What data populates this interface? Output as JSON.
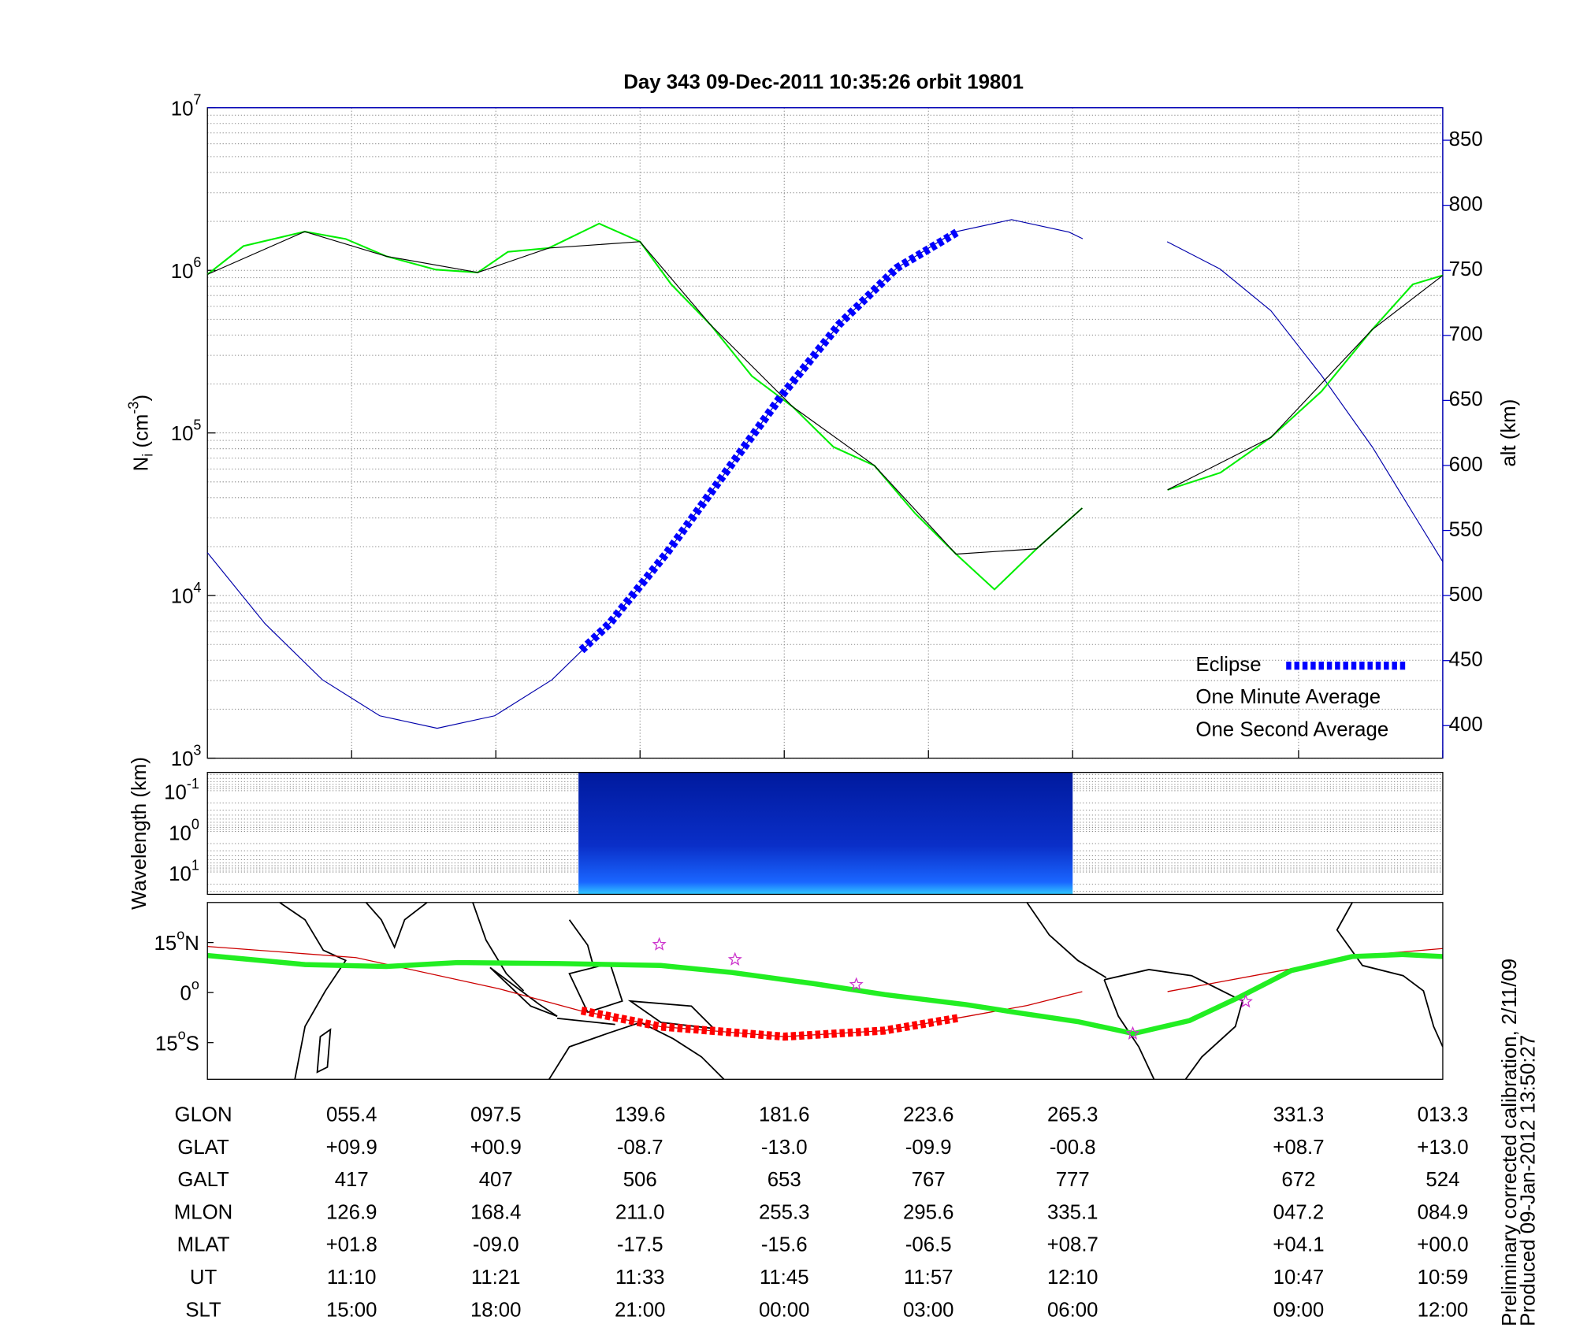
{
  "chart_data": [
    {
      "type": "line",
      "title": "Day 343  09-Dec-2011 10:35:26   orbit 19801",
      "ylabel": {
        "base": "N",
        "sub": "i",
        "mid": " (cm",
        "sup": "-3",
        "end": ")"
      },
      "y2label": "alt (km)",
      "xlim": [
        0,
        102.8
      ],
      "xticks": [
        12,
        24,
        36,
        48,
        60,
        72,
        90.8,
        102.8
      ],
      "ylim": [
        1000,
        10000000
      ],
      "yscale": "log",
      "yticks": [
        {
          "value": 1000,
          "label": "10",
          "sup": "3"
        },
        {
          "value": 10000,
          "label": "10",
          "sup": "4"
        },
        {
          "value": 100000,
          "label": "10",
          "sup": "5"
        },
        {
          "value": 1000000,
          "label": "10",
          "sup": "6"
        },
        {
          "value": 10000000,
          "label": "10",
          "sup": "7"
        }
      ],
      "yminorticks": [
        2000,
        3000,
        4000,
        5000,
        6000,
        7000,
        8000,
        9000,
        20000,
        30000,
        40000,
        50000,
        60000,
        70000,
        80000,
        90000,
        200000,
        300000,
        400000,
        500000,
        600000,
        700000,
        800000,
        900000,
        2000000,
        3000000,
        4000000,
        5000000,
        6000000,
        7000000,
        8000000,
        9000000
      ],
      "y2lim": [
        375,
        875
      ],
      "y2ticks": [
        400,
        450,
        500,
        550,
        600,
        650,
        700,
        750,
        800,
        850
      ],
      "y2color": "#0000cc",
      "grid": true,
      "legend": "lower right",
      "series": [
        {
          "color": "#0000aa",
          "axis": "y2",
          "style": "thin",
          "x": [
            0,
            4.78,
            9.56,
            14.34,
            19.12,
            23.9,
            28.68,
            33.46,
            38.24,
            43.02,
            47.8,
            52.58,
            57.36,
            62.14,
            66.92,
            71.7,
            72.84,
            null,
            79.86,
            84.26,
            88.49,
            92.72,
            96.95,
            100.34,
            102.8
          ],
          "values": [
            533,
            478.5,
            435.3,
            407.6,
            398,
            407.6,
            435.3,
            478.5,
            533,
            593.5,
            654,
            708.5,
            751.7,
            779.4,
            789,
            779.4,
            774.3,
            null,
            772,
            751,
            719,
            669,
            614,
            563,
            526
          ]
        },
        {
          "name": "One Second Average",
          "color": "#00ee00",
          "style": "solid",
          "x": [
            0,
            3,
            8.1,
            11.5,
            14.9,
            19,
            22.5,
            25,
            28.4,
            32.6,
            36,
            38.6,
            41.9,
            45.3,
            48.7,
            52.1,
            55.5,
            58.9,
            62.3,
            65.5,
            69,
            72.8,
            null,
            79.9,
            84.3,
            88.5,
            92.7,
            96.9,
            100.3,
            102.8
          ],
          "values": [
            944000,
            1410000,
            1730000,
            1560000,
            1220000,
            1010000,
            970000,
            1300000,
            1370000,
            1940000,
            1500000,
            820000,
            460000,
            224000,
            145000,
            82000,
            63000,
            32000,
            18000,
            10900,
            19400,
            34500,
            null,
            44700,
            57000,
            94000,
            180000,
            430000,
            820000,
            930000
          ]
        },
        {
          "name": "One Minute Average",
          "color": "#000000",
          "style": "thin",
          "x": [
            0,
            8.1,
            14.9,
            22.5,
            28.4,
            36,
            41.9,
            48.7,
            55.5,
            62.3,
            69,
            72.8,
            null,
            79.9,
            88.5,
            96.9,
            102.8
          ],
          "values": [
            944000,
            1730000,
            1220000,
            970000,
            1370000,
            1500000,
            460000,
            145000,
            63000,
            18000,
            19400,
            34500,
            null,
            44700,
            94000,
            430000,
            930000
          ]
        },
        {
          "name": "Eclipse",
          "color": "#0000ff",
          "axis": "y2",
          "style": "dashed",
          "x": [
            31.13,
            33.46,
            38.24,
            43.02,
            47.8,
            52.58,
            57.36,
            62.5
          ],
          "values": [
            458,
            478.5,
            533,
            593.5,
            654,
            708.5,
            751.7,
            780
          ]
        }
      ]
    },
    {
      "type": "spectrogram",
      "ylabel": "Wavelength (km)",
      "xlim": [
        0,
        102.8
      ],
      "ylim": [
        0.0355,
        35.5
      ],
      "yscale": "log",
      "inverted": true,
      "yticks": [
        {
          "value": 0.1,
          "label": "10",
          "sup": "-1"
        },
        {
          "value": 1,
          "label": "10",
          "sup": "0"
        },
        {
          "value": 10,
          "label": "10",
          "sup": "1"
        }
      ],
      "yminorticks": [
        0.04,
        0.05,
        0.06,
        0.07,
        0.08,
        0.09,
        0.2,
        0.3,
        0.4,
        0.5,
        0.6,
        0.7,
        0.8,
        0.9,
        2,
        3,
        4,
        5,
        6,
        7,
        8,
        9,
        20,
        30
      ],
      "x_range": [
        30.88,
        72.0
      ]
    },
    {
      "type": "map",
      "xlim": [
        0,
        102.8
      ],
      "ylim": [
        -26,
        27
      ],
      "yticks": [
        {
          "value": 15,
          "label": "15",
          "sup": "o",
          "end": "N"
        },
        {
          "value": 0,
          "label": "0",
          "sup": "o"
        },
        {
          "value": -15,
          "label": "15",
          "sup": "o",
          "end": "S"
        }
      ],
      "series": [
        {
          "color": "#cc0000",
          "style": "thin",
          "x": [
            0,
            12.35,
            24.2,
            31,
            37.7,
            48,
            56.3,
            63.1,
            68.2,
            72.8,
            null,
            79.9,
            88.5,
            96.9,
            102.8
          ],
          "values": [
            13.8,
            10.5,
            1.2,
            -5.4,
            -10.2,
            -13.2,
            -11.4,
            -7.2,
            -3.9,
            0.3,
            null,
            0.3,
            6,
            11.4,
            13.2
          ]
        },
        {
          "color": "#22ee22",
          "style": "thick",
          "x": [
            0,
            8.12,
            14.89,
            20.81,
            29.27,
            37.73,
            43.65,
            50.42,
            56.35,
            63.11,
            67.34,
            72.42,
            77.07,
            81.73,
            85.96,
            90.19,
            95.26,
            99.49,
            102.8
          ],
          "values": [
            11.1,
            8.4,
            7.8,
            9,
            8.7,
            8.1,
            6,
            2.7,
            -0.6,
            -3.6,
            -6,
            -8.7,
            -12.3,
            -8.4,
            -1.2,
            6.6,
            10.8,
            11.4,
            10.8
          ]
        },
        {
          "color": "#ff0000",
          "style": "dashed",
          "x": [
            31.13,
            37.7,
            48,
            56.3,
            62.5
          ],
          "values": [
            -5.4,
            -10.2,
            -13.2,
            -11.4,
            -7.6
          ]
        },
        {
          "color": "#cc33cc",
          "style": "stars",
          "x": [
            37.6,
            43.9,
            54,
            77,
            86.4
          ],
          "values": [
            14.4,
            9.9,
            2.4,
            -12.3,
            -2.7
          ]
        }
      ]
    }
  ],
  "table": {
    "rows": [
      {
        "label": "GLON",
        "values": [
          "055.4",
          "097.5",
          "139.6",
          "181.6",
          "223.6",
          "265.3",
          "331.3",
          "013.3"
        ]
      },
      {
        "label": "GLAT",
        "values": [
          "+09.9",
          "+00.9",
          "-08.7",
          "-13.0",
          "-09.9",
          "-00.8",
          "+08.7",
          "+13.0"
        ]
      },
      {
        "label": "GALT",
        "values": [
          417,
          407,
          506,
          653,
          767,
          777,
          672,
          524
        ]
      },
      {
        "label": "MLON",
        "values": [
          "126.9",
          "168.4",
          "211.0",
          "255.3",
          "295.6",
          "335.1",
          "047.2",
          "084.9"
        ]
      },
      {
        "label": "MLAT",
        "values": [
          "+01.8",
          "-09.0",
          "-17.5",
          "-15.6",
          "-06.5",
          "+08.7",
          "+04.1",
          "+00.0"
        ]
      },
      {
        "label": "UT",
        "values": [
          "11:10",
          "11:21",
          "11:33",
          "11:45",
          "11:57",
          "12:10",
          "10:47",
          "10:59"
        ]
      },
      {
        "label": "SLT",
        "values": [
          "15:00",
          "18:00",
          "21:00",
          "00:00",
          "03:00",
          "06:00",
          "09:00",
          "12:00"
        ]
      }
    ]
  },
  "annotations": [
    "Preliminary corrected calibration, 2/11/09",
    "Produced 09-Jan-2012 13:50:27"
  ]
}
